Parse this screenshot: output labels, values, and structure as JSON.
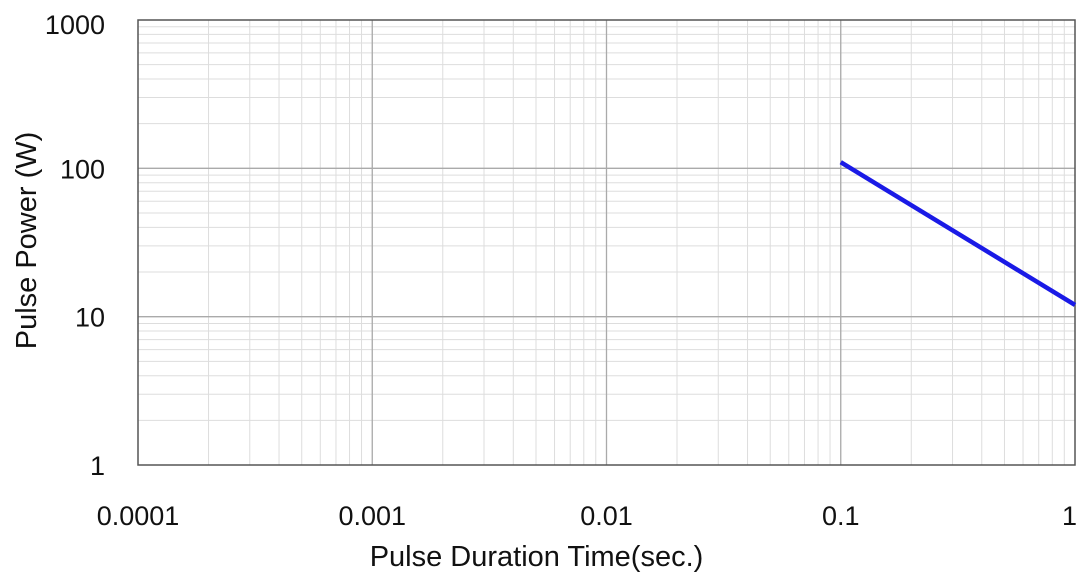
{
  "chart_data": {
    "type": "line",
    "xlabel": "Pulse Duration Time(sec.)",
    "ylabel": "Pulse Power (W)",
    "x_scale": "log",
    "y_scale": "log",
    "xlim": [
      0.0001,
      1
    ],
    "ylim": [
      1,
      1000
    ],
    "x_ticks": [
      {
        "value": 0.0001,
        "label": "0.0001"
      },
      {
        "value": 0.001,
        "label": "0.001"
      },
      {
        "value": 0.01,
        "label": "0.01"
      },
      {
        "value": 0.1,
        "label": "0.1"
      },
      {
        "value": 1,
        "label": "1"
      }
    ],
    "y_ticks": [
      {
        "value": 1,
        "label": "1"
      },
      {
        "value": 10,
        "label": "10"
      },
      {
        "value": 100,
        "label": "100"
      },
      {
        "value": 1000,
        "label": "1000"
      }
    ],
    "grid": true,
    "grid_minor": true,
    "series": [
      {
        "color": "#1a1ae6",
        "x": [
          0.1,
          1
        ],
        "y": [
          110,
          12
        ]
      }
    ]
  }
}
